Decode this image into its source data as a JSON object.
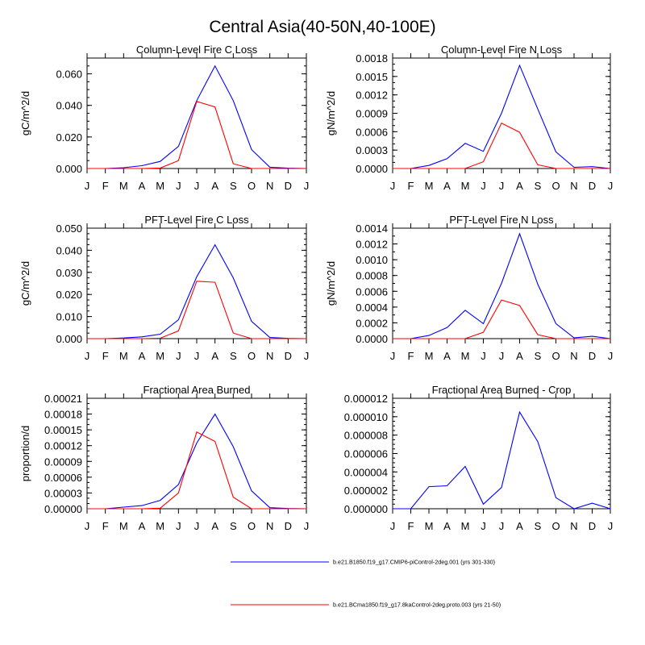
{
  "figure_title": "Central Asia(40-50N,40-100E)",
  "legend": [
    {
      "name": "b.e21.B1850.f19_g17.CMIP6-piControl-2deg.001 (yrs 301-330)",
      "color": "#0000ff"
    },
    {
      "name": "b.e21.BCma1850.f19_g17.8kaControl-2deg.proto.003 (yrs 21-50)",
      "color": "#ff0000"
    }
  ],
  "chart_data": [
    {
      "type": "line",
      "title": "Column-Level Fire C Loss",
      "ylabel": "gC/m^2/d",
      "categories": [
        "J",
        "F",
        "M",
        "A",
        "M",
        "J",
        "J",
        "A",
        "S",
        "O",
        "N",
        "D",
        "J"
      ],
      "ylim": [
        0,
        0.07
      ],
      "yticks": [
        0,
        0.02,
        0.04,
        0.06
      ],
      "ytick_labels": [
        "0.000",
        "0.020",
        "0.040",
        "0.060"
      ],
      "yminor": 0.005,
      "series": [
        {
          "name": "b.e21.B1850.f19_g17.CMIP6-piControl-2deg.001 (yrs 301-330)",
          "color": "#0000ff",
          "values": [
            0,
            0,
            0.0005,
            0.0018,
            0.0045,
            0.014,
            0.043,
            0.065,
            0.043,
            0.012,
            0.0008,
            0.0002,
            0
          ]
        },
        {
          "name": "b.e21.BCma1850.f19_g17.8kaControl-2deg.proto.003 (yrs 21-50)",
          "color": "#ff0000",
          "values": [
            0,
            0,
            0,
            0,
            0.0003,
            0.005,
            0.0425,
            0.039,
            0.003,
            0,
            0,
            0,
            0
          ]
        }
      ]
    },
    {
      "type": "line",
      "title": "Column-Level Fire N Loss",
      "ylabel": "gN/m^2/d",
      "categories": [
        "J",
        "F",
        "M",
        "A",
        "M",
        "J",
        "J",
        "A",
        "S",
        "O",
        "N",
        "D",
        "J"
      ],
      "ylim": [
        0,
        0.0018
      ],
      "yticks": [
        0,
        0.0003,
        0.0006,
        0.0009,
        0.0012,
        0.0015,
        0.0018
      ],
      "ytick_labels": [
        "0.0000",
        "0.0003",
        "0.0006",
        "0.0009",
        "0.0012",
        "0.0015",
        "0.0018"
      ],
      "yminor": 0.0001,
      "series": [
        {
          "name": "b.e21.B1850.f19_g17.CMIP6-piControl-2deg.001 (yrs 301-330)",
          "color": "#0000ff",
          "values": [
            0,
            0,
            5e-05,
            0.00016,
            0.00041,
            0.00028,
            0.0009,
            0.00168,
            0.00097,
            0.00027,
            2e-05,
            3e-05,
            0
          ]
        },
        {
          "name": "b.e21.BCma1850.f19_g17.8kaControl-2deg.proto.003 (yrs 21-50)",
          "color": "#ff0000",
          "values": [
            0,
            0,
            0,
            0,
            0,
            0.00011,
            0.00074,
            0.00059,
            6e-05,
            0,
            0,
            0,
            0
          ]
        }
      ]
    },
    {
      "type": "line",
      "title": "PFT-Level Fire C Loss",
      "ylabel": "gC/m^2/d",
      "categories": [
        "J",
        "F",
        "M",
        "A",
        "M",
        "J",
        "J",
        "A",
        "S",
        "O",
        "N",
        "D",
        "J"
      ],
      "ylim": [
        0,
        0.05
      ],
      "yticks": [
        0,
        0.01,
        0.02,
        0.03,
        0.04,
        0.05
      ],
      "ytick_labels": [
        "0.000",
        "0.010",
        "0.020",
        "0.030",
        "0.040",
        "0.050"
      ],
      "yminor": 0.0025,
      "series": [
        {
          "name": "b.e21.B1850.f19_g17.CMIP6-piControl-2deg.001 (yrs 301-330)",
          "color": "#0000ff",
          "values": [
            0,
            0,
            0.0003,
            0.0008,
            0.002,
            0.0085,
            0.028,
            0.0425,
            0.0275,
            0.0078,
            0.0005,
            0.0001,
            0
          ]
        },
        {
          "name": "b.e21.BCma1850.f19_g17.8kaControl-2deg.proto.003 (yrs 21-50)",
          "color": "#ff0000",
          "values": [
            0,
            0,
            0,
            0,
            0.0002,
            0.0035,
            0.026,
            0.0255,
            0.0025,
            0,
            0,
            0,
            0
          ]
        }
      ]
    },
    {
      "type": "line",
      "title": "PFT-Level Fire N Loss",
      "ylabel": "gN/m^2/d",
      "categories": [
        "J",
        "F",
        "M",
        "A",
        "M",
        "J",
        "J",
        "A",
        "S",
        "O",
        "N",
        "D",
        "J"
      ],
      "ylim": [
        0,
        0.0014
      ],
      "yticks": [
        0,
        0.0002,
        0.0004,
        0.0006,
        0.0008,
        0.001,
        0.0012,
        0.0014
      ],
      "ytick_labels": [
        "0.0000",
        "0.0002",
        "0.0004",
        "0.0006",
        "0.0008",
        "0.0010",
        "0.0012",
        "0.0014"
      ],
      "yminor": 0.0001,
      "series": [
        {
          "name": "b.e21.B1850.f19_g17.CMIP6-piControl-2deg.001 (yrs 301-330)",
          "color": "#0000ff",
          "values": [
            0,
            0,
            4e-05,
            0.00014,
            0.00036,
            0.00019,
            0.0007,
            0.00133,
            0.00069,
            0.00019,
            1e-05,
            3e-05,
            0
          ]
        },
        {
          "name": "b.e21.BCma1850.f19_g17.8kaControl-2deg.proto.003 (yrs 21-50)",
          "color": "#ff0000",
          "values": [
            0,
            0,
            0,
            0,
            0,
            8e-05,
            0.00049,
            0.00042,
            5e-05,
            0,
            0,
            0,
            0
          ]
        }
      ]
    },
    {
      "type": "line",
      "title": "Fractional Area Burned",
      "ylabel": "proportion/d",
      "categories": [
        "J",
        "F",
        "M",
        "A",
        "M",
        "J",
        "J",
        "A",
        "S",
        "O",
        "N",
        "D",
        "J"
      ],
      "ylim": [
        0,
        0.00021
      ],
      "yticks": [
        0,
        3e-05,
        6e-05,
        9e-05,
        0.00012,
        0.00015,
        0.00018,
        0.00021
      ],
      "ytick_labels": [
        "0.00000",
        "0.00003",
        "0.00006",
        "0.00009",
        "0.00012",
        "0.00015",
        "0.00018",
        "0.00021"
      ],
      "yminor": 1e-05,
      "series": [
        {
          "name": "b.e21.B1850.f19_g17.CMIP6-piControl-2deg.001 (yrs 301-330)",
          "color": "#0000ff",
          "values": [
            0,
            0,
            3e-06,
            6e-06,
            1.6e-05,
            4.6e-05,
            0.000125,
            0.00018,
            0.000118,
            3.4e-05,
            2e-06,
            5e-07,
            0
          ]
        },
        {
          "name": "b.e21.BCma1850.f19_g17.8kaControl-2deg.proto.003 (yrs 21-50)",
          "color": "#ff0000",
          "values": [
            0,
            0,
            0,
            0,
            1e-06,
            3e-05,
            0.000146,
            0.000128,
            2.2e-05,
            0,
            0,
            0,
            0
          ]
        }
      ]
    },
    {
      "type": "line",
      "title": "Fractional Area Burned - Crop",
      "ylabel": "",
      "categories": [
        "J",
        "F",
        "M",
        "A",
        "M",
        "J",
        "J",
        "A",
        "S",
        "O",
        "N",
        "D",
        "J"
      ],
      "ylim": [
        0,
        1.2e-05
      ],
      "yticks": [
        0,
        2e-06,
        4e-06,
        6e-06,
        8e-06,
        1e-05,
        1.2e-05
      ],
      "ytick_labels": [
        "0.000000",
        "0.000002",
        "0.000004",
        "0.000006",
        "0.000008",
        "0.000010",
        "0.000012"
      ],
      "yminor": 5e-07,
      "series": [
        {
          "name": "b.e21.B1850.f19_g17.CMIP6-piControl-2deg.001 (yrs 301-330)",
          "color": "#0000ff",
          "values": [
            0,
            0,
            2.4e-06,
            2.5e-06,
            4.6e-06,
            5e-07,
            2.3e-06,
            1.05e-05,
            7.3e-06,
            1.2e-06,
            0,
            6e-07,
            0
          ]
        }
      ]
    }
  ]
}
